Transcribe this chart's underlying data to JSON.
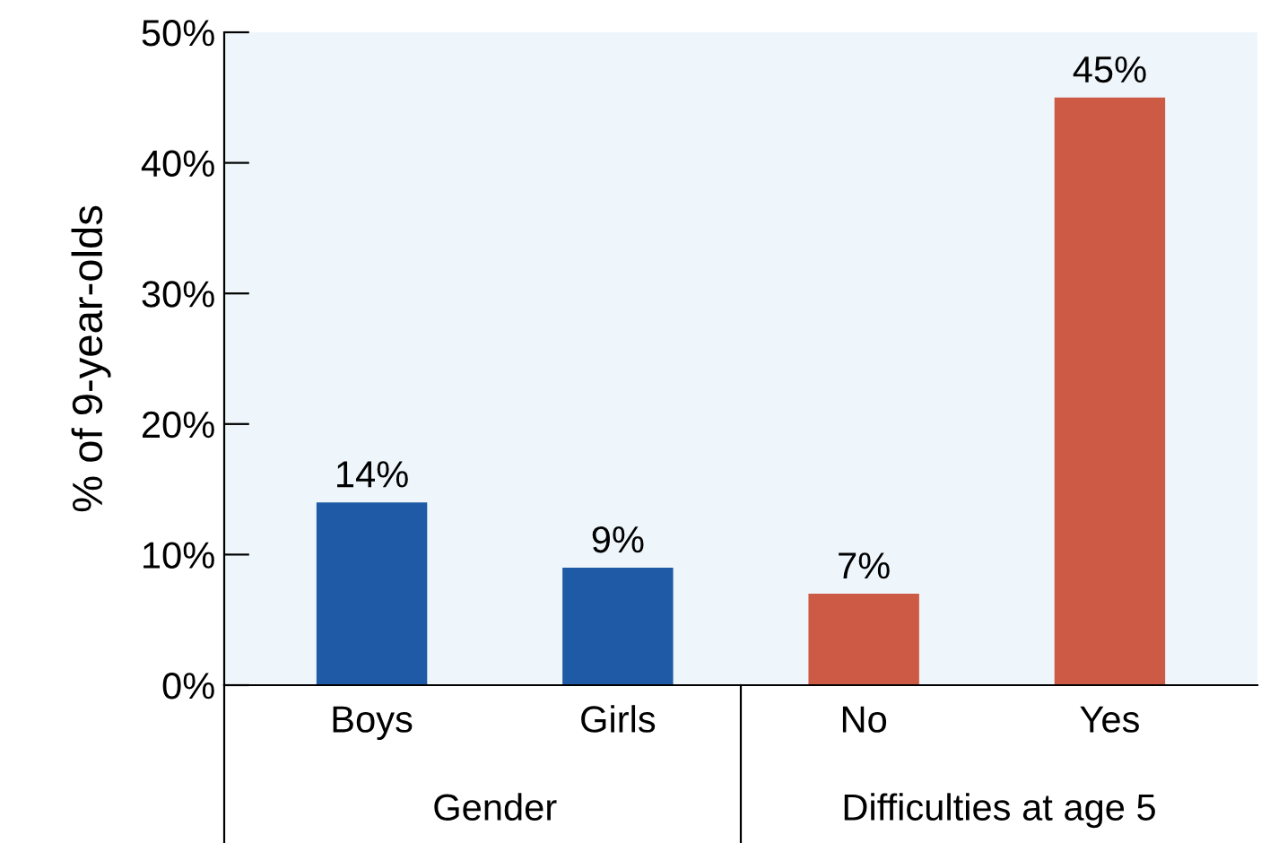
{
  "chart_data": {
    "type": "bar",
    "ylabel": "% of 9-year-olds",
    "categories": [
      "Boys",
      "Girls",
      "No",
      "Yes"
    ],
    "values": [
      14,
      9,
      7,
      45
    ],
    "colors": [
      "#1f5aa6",
      "#1f5aa6",
      "#cd5a45",
      "#cd5a45"
    ],
    "value_labels": [
      "14%",
      "9%",
      "7%",
      "45%"
    ],
    "ylim": [
      0,
      50
    ],
    "yticks": [
      {
        "value": 0,
        "label": "0%"
      },
      {
        "value": 10,
        "label": "10%"
      },
      {
        "value": 20,
        "label": "20%"
      },
      {
        "value": 30,
        "label": "30%"
      },
      {
        "value": 40,
        "label": "40%"
      },
      {
        "value": 50,
        "label": "50%"
      }
    ],
    "annotations": [
      "Gender",
      "Difficulties at age 5"
    ],
    "grid": false,
    "legend": false
  }
}
